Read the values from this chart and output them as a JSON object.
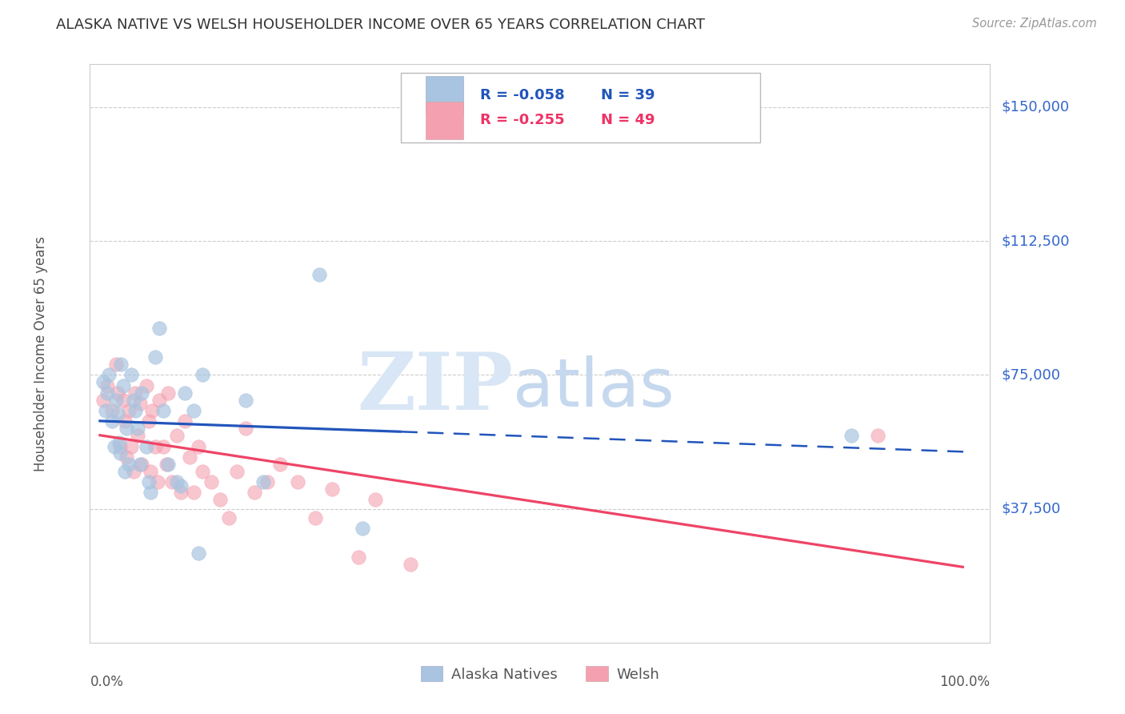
{
  "title": "ALASKA NATIVE VS WELSH HOUSEHOLDER INCOME OVER 65 YEARS CORRELATION CHART",
  "source_text": "Source: ZipAtlas.com",
  "ylabel": "Householder Income Over 65 years",
  "ytick_labels": [
    "$37,500",
    "$75,000",
    "$112,500",
    "$150,000"
  ],
  "ytick_values": [
    37500,
    75000,
    112500,
    150000
  ],
  "ymin": 0,
  "ymax": 162000,
  "xmin": -0.01,
  "xmax": 1.03,
  "blue_color": "#A8C4E0",
  "pink_color": "#F4A0B0",
  "blue_line_color": "#2255BB",
  "pink_line_color": "#EE4466",
  "legend_text_color": "#2255BB",
  "alaska_x": [
    0.005,
    0.008,
    0.01,
    0.012,
    0.015,
    0.018,
    0.02,
    0.022,
    0.024,
    0.025,
    0.026,
    0.028,
    0.03,
    0.032,
    0.035,
    0.038,
    0.04,
    0.042,
    0.045,
    0.048,
    0.05,
    0.055,
    0.058,
    0.06,
    0.065,
    0.07,
    0.075,
    0.08,
    0.09,
    0.095,
    0.1,
    0.11,
    0.115,
    0.12,
    0.17,
    0.19,
    0.255,
    0.305,
    0.87
  ],
  "alaska_y": [
    73000,
    65000,
    70000,
    75000,
    62000,
    55000,
    68000,
    64000,
    56000,
    53000,
    78000,
    72000,
    48000,
    60000,
    50000,
    75000,
    68000,
    65000,
    60000,
    50000,
    70000,
    55000,
    45000,
    42000,
    80000,
    88000,
    65000,
    50000,
    45000,
    44000,
    70000,
    65000,
    25000,
    75000,
    68000,
    45000,
    103000,
    32000,
    58000
  ],
  "welsh_x": [
    0.005,
    0.01,
    0.015,
    0.02,
    0.022,
    0.025,
    0.028,
    0.03,
    0.032,
    0.035,
    0.038,
    0.04,
    0.042,
    0.045,
    0.048,
    0.05,
    0.055,
    0.058,
    0.06,
    0.062,
    0.065,
    0.068,
    0.07,
    0.075,
    0.078,
    0.08,
    0.085,
    0.09,
    0.095,
    0.1,
    0.105,
    0.11,
    0.115,
    0.12,
    0.13,
    0.14,
    0.15,
    0.16,
    0.17,
    0.18,
    0.195,
    0.21,
    0.23,
    0.25,
    0.27,
    0.3,
    0.32,
    0.36,
    0.9
  ],
  "welsh_y": [
    68000,
    72000,
    65000,
    78000,
    70000,
    55000,
    68000,
    62000,
    52000,
    65000,
    55000,
    48000,
    70000,
    58000,
    67000,
    50000,
    72000,
    62000,
    48000,
    65000,
    55000,
    45000,
    68000,
    55000,
    50000,
    70000,
    45000,
    58000,
    42000,
    62000,
    52000,
    42000,
    55000,
    48000,
    45000,
    40000,
    35000,
    48000,
    60000,
    42000,
    45000,
    50000,
    45000,
    35000,
    43000,
    24000,
    40000,
    22000,
    58000
  ]
}
